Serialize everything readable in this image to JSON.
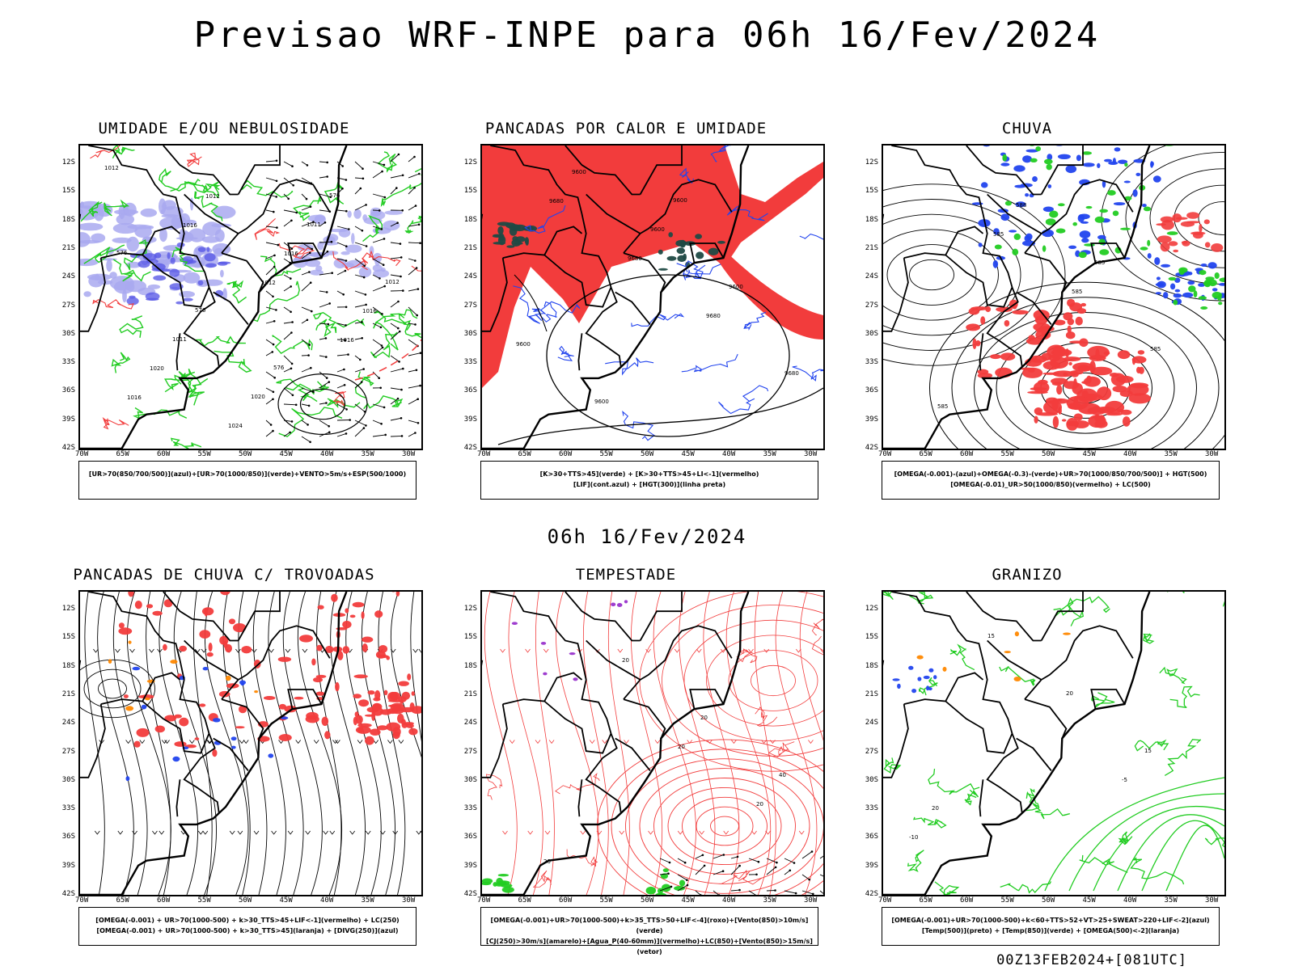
{
  "header": {
    "title": "Previsao WRF-INPE  para 06h 16/Fev/2024"
  },
  "mid_label": "06h 16/Fev/2024",
  "footer": "00Z13FEB2024+[081UTC]",
  "axes": {
    "lat_labels": [
      "12S",
      "15S",
      "18S",
      "21S",
      "24S",
      "27S",
      "30S",
      "33S",
      "36S",
      "39S",
      "42S"
    ],
    "lon_labels": [
      "70W",
      "65W",
      "60W",
      "55W",
      "50W",
      "45W",
      "40W",
      "35W",
      "30W"
    ]
  },
  "panels": [
    {
      "id": "umidade",
      "title": "UMIDADE E/OU NEBULOSIDADE",
      "legend": [
        "[UR>70(850/700/500)](azul)+[UR>70(1000/850)](verde)+VENTO>5m/s+ESP(500/1000)"
      ],
      "labels": [
        "1012",
        "1016",
        "1012",
        "1016",
        "1016",
        "1012",
        "1016",
        "1016",
        "1020",
        "1024",
        "1011",
        "1012",
        "1011",
        "1020",
        "576",
        "576",
        "576",
        "576"
      ]
    },
    {
      "id": "pancadas-calor",
      "title": "PANCADAS POR CALOR E UMIDADE",
      "legend": [
        "[K>30+TTS>45](verde) + [K>30+TTS>45+LI<-1](vermelho)",
        "[LIF](cont.azul) + [HGT(300)](linha preta)"
      ],
      "labels": [
        "9680",
        "9680",
        "9680",
        "9680",
        "9600",
        "9600",
        "9600",
        "9600",
        "9600",
        "9600"
      ]
    },
    {
      "id": "chuva",
      "title": "CHUVA",
      "legend": [
        "[OMEGA(-0.001)-(azul)+OMEGA(-0.3)-(verde)+UR>70(1000/850/700/500)] + HGT(500)",
        "[OMEGA(-0.01)_UR>50(1000/850)(vermelho) + LC(500)"
      ],
      "labels": [
        "585",
        "585",
        "585",
        "585",
        "588",
        "585"
      ]
    },
    {
      "id": "trovoadas",
      "title": "PANCADAS DE CHUVA C/ TROVOADAS",
      "legend": [
        "[OMEGA(-0.001) + UR>70(1000-500) + k>30_TTS>45+LIF<-1](vermelho) + LC(250)",
        "[OMEGA(-0.001) + UR>70(1000-500) + k>30_TTS>45](laranja) + [DIVG(250)](azul)"
      ],
      "labels": []
    },
    {
      "id": "tempestade",
      "title": "TEMPESTADE",
      "legend": [
        "[OMEGA(-0.001)+UR>70(1000-500)+k>35_TTS>50+LIF<-4](roxo)+[Vento(850)>10m/s](verde)",
        "[CJ(250)>30m/s](amarelo)+[Agua_P(40-60mm)](vermelho)+LC(850)+[Vento(850)>15m/s](vetor)"
      ],
      "labels": [
        "20",
        "20",
        "20",
        "20",
        "20",
        "40"
      ]
    },
    {
      "id": "granizo",
      "title": "GRANIZO",
      "legend": [
        "[OMEGA(-0.001)+UR>70(1000-500)+k<60+TTS>52+VT>25+SWEAT>220+LIF<-2](azul)",
        "[Temp(500)](preto) + [Temp(850)](verde) + [OMEGA(500)<-2](laranja)"
      ],
      "labels": [
        "-5",
        "-10",
        "15",
        "20",
        "15",
        "20"
      ]
    }
  ],
  "colors": {
    "red": "#f23c3c",
    "green": "#22cc22",
    "blue": "#2244ee",
    "lavender": "#a9a9f0",
    "purple": "#9933cc",
    "orange": "#ff8800",
    "darkteal": "#1f4a44"
  }
}
